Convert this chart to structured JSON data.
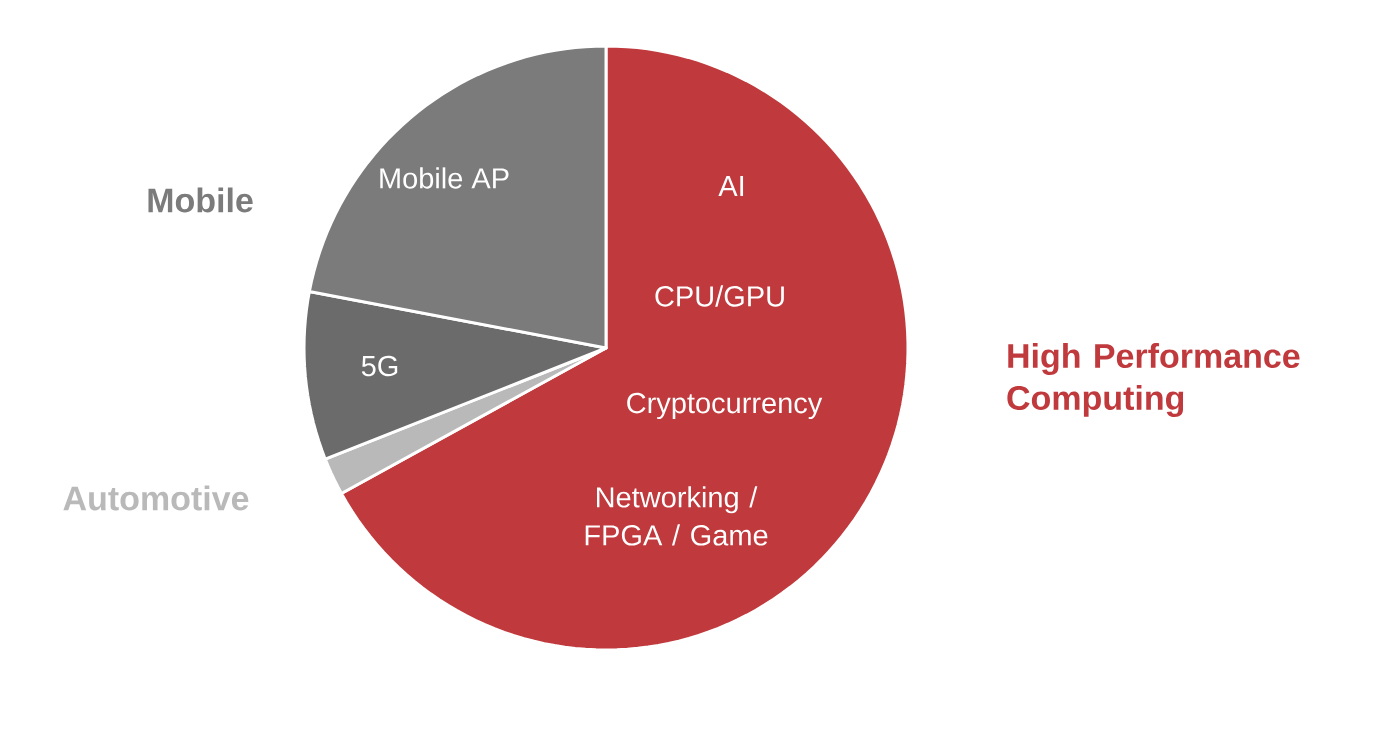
{
  "chart_data": {
    "type": "pie",
    "categories": [
      "High Performance Computing",
      "Automotive",
      "5G",
      "Mobile AP"
    ],
    "values": [
      67,
      2,
      9,
      22
    ],
    "colors": [
      "#c0393c",
      "#b9b9b9",
      "#6b6b6b",
      "#7b7b7b"
    ],
    "annotations": [
      "Mobile",
      "AI",
      "CPU/GPU",
      "Cryptocurrency",
      "Networking / FPGA / Game"
    ]
  }
}
